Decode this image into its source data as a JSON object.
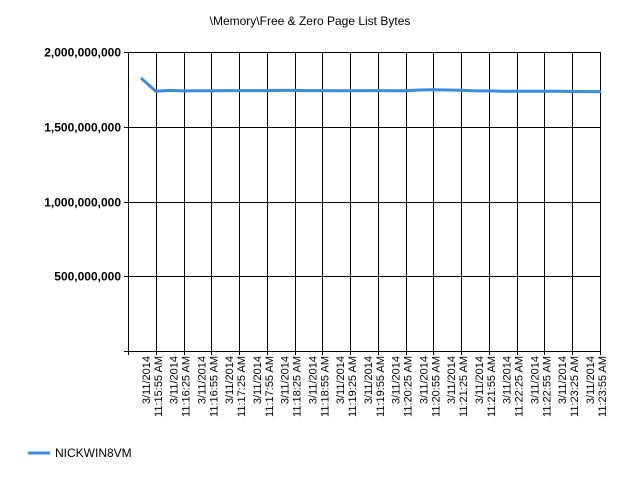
{
  "chart_data": {
    "type": "line",
    "title": "\\Memory\\Free & Zero Page List Bytes",
    "xlabel": "",
    "ylabel": "",
    "ylim": [
      0,
      2000000000
    ],
    "yticks": [
      500000000,
      1000000000,
      1500000000,
      2000000000
    ],
    "ytick_labels": [
      "500,000,000",
      "1,000,000,000",
      "1,500,000,000",
      "2,000,000,000"
    ],
    "x_categories": [
      "3/11/2014 11:15:55 AM",
      "3/11/2014 11:16:25 AM",
      "3/11/2014 11:16:55 AM",
      "3/11/2014 11:17:25 AM",
      "3/11/2014 11:17:55 AM",
      "3/11/2014 11:18:25 AM",
      "3/11/2014 11:18:55 AM",
      "3/11/2014 11:19:25 AM",
      "3/11/2014 11:19:55 AM",
      "3/11/2014 11:20:25 AM",
      "3/11/2014 11:20:55 AM",
      "3/11/2014 11:21:25 AM",
      "3/11/2014 11:21:55 AM",
      "3/11/2014 11:22:25 AM",
      "3/11/2014 11:22:55 AM",
      "3/11/2014 11:23:25 AM",
      "3/11/2014 11:23:55 AM"
    ],
    "x_positions": [
      0.5,
      1,
      1.5,
      2,
      2.5,
      3,
      3.5,
      4,
      4.5,
      5,
      5.5,
      6,
      6.5,
      7,
      7.5,
      8,
      8.5,
      9,
      9.5,
      10,
      10.5,
      11,
      11.5,
      12,
      12.5,
      13,
      13.5,
      14,
      14.5,
      15,
      15.5,
      16,
      16.5,
      17
    ],
    "grid": true,
    "legend_position": "bottom-left",
    "series": [
      {
        "name": "NICKWIN8VM",
        "color": "#3a8ce0",
        "values": [
          1820000000,
          1738000000,
          1743000000,
          1740000000,
          1741000000,
          1741000000,
          1742000000,
          1742000000,
          1742000000,
          1742000000,
          1743000000,
          1743000000,
          1742000000,
          1742000000,
          1741000000,
          1741000000,
          1742000000,
          1742000000,
          1741000000,
          1741000000,
          1746000000,
          1747000000,
          1746000000,
          1744000000,
          1740000000,
          1740000000,
          1738000000,
          1738000000,
          1737000000,
          1737000000,
          1737000000,
          1736000000,
          1735000000,
          1735000000
        ]
      }
    ]
  }
}
